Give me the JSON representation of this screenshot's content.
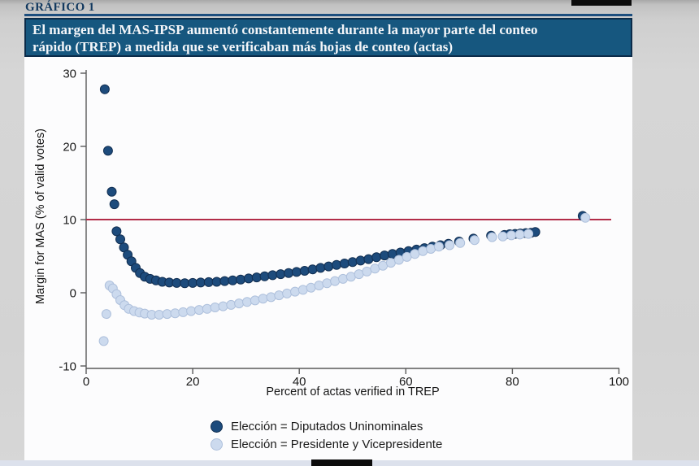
{
  "page": {
    "kicker": "GRÁFICO 1",
    "kicker_color": "#12395f",
    "banner": {
      "line1": "El margen del MAS-IPSP aumentó constantemente durante la mayor parte del conteo",
      "line2": "rápido (TREP) a medida que se verificaban más hojas de conteo (actas)",
      "bg_color": "#16577f",
      "border_color": "#0b2b49",
      "text_color": "#f4f6f9"
    },
    "background_color": "#d3d3d3",
    "figure_background": "#fcfcfd"
  },
  "chart_data": {
    "type": "scatter",
    "title": "El margen del MAS-IPSP aumentó constantemente durante la mayor parte del conteo rápido (TREP) a medida que se verificaban más hojas de conteo (actas)",
    "xlabel": "Percent of actas verified in TREP",
    "ylabel": "Margin for MAS (% of valid votes)",
    "xlim": [
      0,
      100
    ],
    "ylim": [
      -10,
      30
    ],
    "xticks": [
      0,
      20,
      40,
      60,
      80,
      100
    ],
    "yticks": [
      -10,
      0,
      10,
      20,
      30
    ],
    "grid": false,
    "legend_position": "bottom-left",
    "axis_color": "#5a5a5a",
    "tick_text_color": "#1a1a1a",
    "reference_line": {
      "y": 10,
      "color": "#b22c48"
    },
    "series": [
      {
        "name": "Elección = Diputados Uninominales",
        "fill": "#1d4b7c",
        "stroke": "#122f52",
        "points": [
          [
            3.5,
            27.8
          ],
          [
            4.1,
            19.4
          ],
          [
            4.8,
            13.8
          ],
          [
            5.3,
            12.1
          ],
          [
            5.7,
            8.4
          ],
          [
            6.4,
            7.3
          ],
          [
            7.1,
            6.2
          ],
          [
            7.8,
            5.2
          ],
          [
            8.5,
            4.3
          ],
          [
            9.3,
            3.4
          ],
          [
            10.1,
            2.7
          ],
          [
            11.0,
            2.2
          ],
          [
            12.0,
            1.9
          ],
          [
            13.1,
            1.7
          ],
          [
            14.3,
            1.5
          ],
          [
            15.6,
            1.4
          ],
          [
            17.0,
            1.35
          ],
          [
            18.5,
            1.3
          ],
          [
            20.0,
            1.35
          ],
          [
            21.5,
            1.4
          ],
          [
            23.0,
            1.45
          ],
          [
            24.5,
            1.5
          ],
          [
            26.0,
            1.6
          ],
          [
            27.5,
            1.7
          ],
          [
            29.0,
            1.8
          ],
          [
            30.5,
            1.95
          ],
          [
            32.0,
            2.1
          ],
          [
            33.5,
            2.25
          ],
          [
            35.0,
            2.4
          ],
          [
            36.5,
            2.55
          ],
          [
            38.0,
            2.7
          ],
          [
            39.5,
            2.85
          ],
          [
            41.0,
            3.0
          ],
          [
            42.5,
            3.2
          ],
          [
            44.0,
            3.4
          ],
          [
            45.5,
            3.6
          ],
          [
            47.0,
            3.8
          ],
          [
            48.5,
            4.0
          ],
          [
            50.0,
            4.2
          ],
          [
            51.5,
            4.4
          ],
          [
            53.0,
            4.6
          ],
          [
            54.5,
            4.85
          ],
          [
            56.0,
            5.1
          ],
          [
            57.5,
            5.3
          ],
          [
            59.0,
            5.5
          ],
          [
            60.5,
            5.7
          ],
          [
            62.0,
            5.9
          ],
          [
            63.5,
            6.1
          ],
          [
            65.0,
            6.3
          ],
          [
            66.5,
            6.5
          ],
          [
            68.0,
            6.7
          ],
          [
            70.0,
            7.0
          ],
          [
            72.7,
            7.4
          ],
          [
            76.0,
            7.8
          ],
          [
            78.5,
            7.9
          ],
          [
            79.5,
            8.0
          ],
          [
            80.5,
            8.05
          ],
          [
            81.5,
            8.1
          ],
          [
            82.5,
            8.15
          ],
          [
            83.5,
            8.2
          ],
          [
            84.3,
            8.3
          ],
          [
            93.2,
            10.5
          ]
        ]
      },
      {
        "name": "Elección = Presidente y Vicepresidente",
        "fill": "#ccdaee",
        "stroke": "#aec0dc",
        "points": [
          [
            3.3,
            -6.6
          ],
          [
            3.8,
            -2.9
          ],
          [
            4.4,
            1.0
          ],
          [
            5.0,
            0.6
          ],
          [
            5.7,
            -0.2
          ],
          [
            6.4,
            -1.0
          ],
          [
            7.2,
            -1.7
          ],
          [
            8.0,
            -2.2
          ],
          [
            9.0,
            -2.5
          ],
          [
            10.0,
            -2.7
          ],
          [
            11.0,
            -2.85
          ],
          [
            12.3,
            -3.0
          ],
          [
            13.7,
            -3.0
          ],
          [
            15.2,
            -2.9
          ],
          [
            16.7,
            -2.8
          ],
          [
            18.2,
            -2.65
          ],
          [
            19.7,
            -2.5
          ],
          [
            21.2,
            -2.35
          ],
          [
            22.7,
            -2.2
          ],
          [
            24.2,
            -2.0
          ],
          [
            25.7,
            -1.85
          ],
          [
            27.2,
            -1.65
          ],
          [
            28.7,
            -1.45
          ],
          [
            30.2,
            -1.25
          ],
          [
            31.7,
            -1.05
          ],
          [
            33.2,
            -0.8
          ],
          [
            34.7,
            -0.6
          ],
          [
            36.2,
            -0.35
          ],
          [
            37.7,
            -0.1
          ],
          [
            39.2,
            0.15
          ],
          [
            40.7,
            0.4
          ],
          [
            42.2,
            0.7
          ],
          [
            43.7,
            1.0
          ],
          [
            45.2,
            1.3
          ],
          [
            46.7,
            1.6
          ],
          [
            48.2,
            1.9
          ],
          [
            49.7,
            2.2
          ],
          [
            51.2,
            2.55
          ],
          [
            52.7,
            2.9
          ],
          [
            54.2,
            3.3
          ],
          [
            55.7,
            3.7
          ],
          [
            57.2,
            4.1
          ],
          [
            58.7,
            4.5
          ],
          [
            60.2,
            4.9
          ],
          [
            61.7,
            5.3
          ],
          [
            63.2,
            5.7
          ],
          [
            64.7,
            6.0
          ],
          [
            66.2,
            6.3
          ],
          [
            68.2,
            6.5
          ],
          [
            70.2,
            6.8
          ],
          [
            72.9,
            7.2
          ],
          [
            76.2,
            7.6
          ],
          [
            78.2,
            7.7
          ],
          [
            79.8,
            7.85
          ],
          [
            81.4,
            7.95
          ],
          [
            83.0,
            8.05
          ],
          [
            93.7,
            10.25
          ]
        ]
      }
    ]
  }
}
